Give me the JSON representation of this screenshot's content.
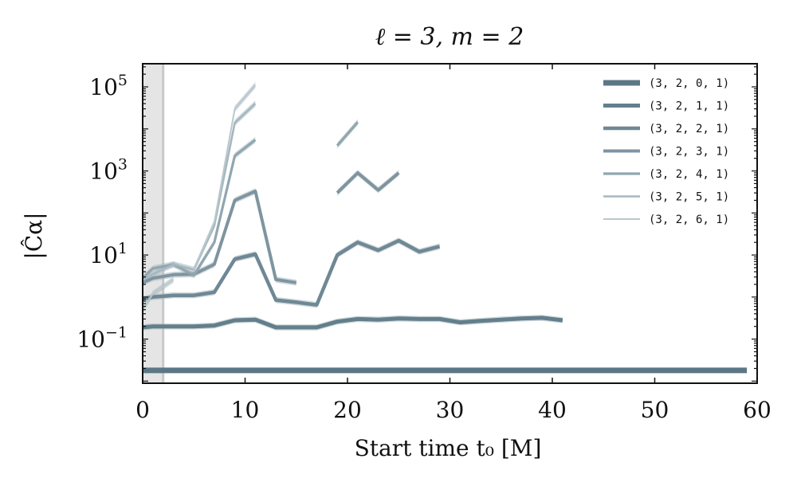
{
  "chart_data": {
    "type": "line",
    "title": "ℓ = 3, m = 2",
    "xlabel": "Start time t₀ [M]",
    "ylabel": "|Ĉα|",
    "xlim": [
      0,
      60
    ],
    "ylim_log10": [
      -2.05,
      5.55
    ],
    "yscale": "log",
    "xticks": [
      0,
      10,
      20,
      30,
      40,
      50,
      60
    ],
    "yticks": [
      {
        "base": "10",
        "exp": "5",
        "log10": 5
      },
      {
        "base": "10",
        "exp": "3",
        "log10": 3
      },
      {
        "base": "10",
        "exp": "1",
        "log10": 1
      },
      {
        "base": "10",
        "exp": "−1",
        "log10": -1
      }
    ],
    "shaded_region_x": [
      0,
      2
    ],
    "legend_position": "top-right",
    "colors": {
      "series": [
        "#5b7785",
        "#637f8c",
        "#6f8895",
        "#7e95a0",
        "#90a6b0",
        "#a5b7bf",
        "#b9c8ce"
      ],
      "band": "#a9b8c0",
      "shade": "#e5e5e5",
      "shade_line": "#c9c9c9"
    },
    "series": [
      {
        "name": "(3, 2, 0, 1)",
        "segments": [
          {
            "x": [
              0,
              59
            ],
            "y": [
              0.018,
              0.018
            ]
          }
        ]
      },
      {
        "name": "(3, 2, 1, 1)",
        "segments": [
          {
            "x": [
              0,
              1,
              3,
              5,
              7,
              9,
              11,
              13,
              15,
              17,
              19,
              21,
              23,
              25,
              27,
              29,
              31,
              33,
              35,
              37,
              39,
              41
            ],
            "y": [
              0.19,
              0.2,
              0.2,
              0.2,
              0.21,
              0.28,
              0.29,
              0.19,
              0.19,
              0.19,
              0.26,
              0.3,
              0.29,
              0.31,
              0.3,
              0.3,
              0.25,
              0.27,
              0.29,
              0.31,
              0.32,
              0.28
            ]
          }
        ]
      },
      {
        "name": "(3, 2, 2, 1)",
        "segments": [
          {
            "x": [
              0,
              1,
              3,
              5,
              7,
              9,
              11,
              13,
              15,
              17,
              19,
              21,
              23,
              25,
              27,
              29
            ],
            "y": [
              0.9,
              1.0,
              1.1,
              1.1,
              1.3,
              8,
              10.5,
              0.85,
              0.75,
              0.65,
              10,
              20,
              13,
              22,
              12,
              16
            ]
          }
        ]
      },
      {
        "name": "(3, 2, 3, 1)",
        "segments": [
          {
            "x": [
              0,
              1,
              3,
              5,
              7,
              9,
              11,
              13,
              15
            ],
            "y": [
              2.2,
              2.8,
              3.4,
              3.5,
              6,
              200,
              330,
              2.6,
              2.2
            ]
          },
          {
            "x": [
              19,
              21,
              23,
              25
            ],
            "y": [
              300,
              900,
              350,
              900
            ]
          }
        ]
      },
      {
        "name": "(3, 2, 4, 1)",
        "segments": [
          {
            "x": [
              0,
              1,
              3,
              5,
              7,
              9,
              11
            ],
            "y": [
              2.8,
              4.8,
              6,
              3.3,
              20,
              2300,
              5500
            ]
          },
          {
            "x": [
              19,
              21
            ],
            "y": [
              4000,
              14500
            ]
          }
        ]
      },
      {
        "name": "(3, 2, 5, 1)",
        "segments": [
          {
            "x": [
              0,
              1,
              3,
              5,
              7,
              9,
              11
            ],
            "y": [
              2.5,
              3.5,
              6,
              4.5,
              50,
              14000,
              40000
            ]
          }
        ]
      },
      {
        "name": "(3, 2, 6, 1)",
        "segments": [
          {
            "x": [
              0,
              1,
              3
            ],
            "y": [
              0.5,
              1.2,
              2.6
            ]
          },
          {
            "x": [
              5,
              7,
              9,
              11
            ],
            "y": [
              4.5,
              60,
              30000,
              110000
            ]
          }
        ]
      }
    ]
  }
}
